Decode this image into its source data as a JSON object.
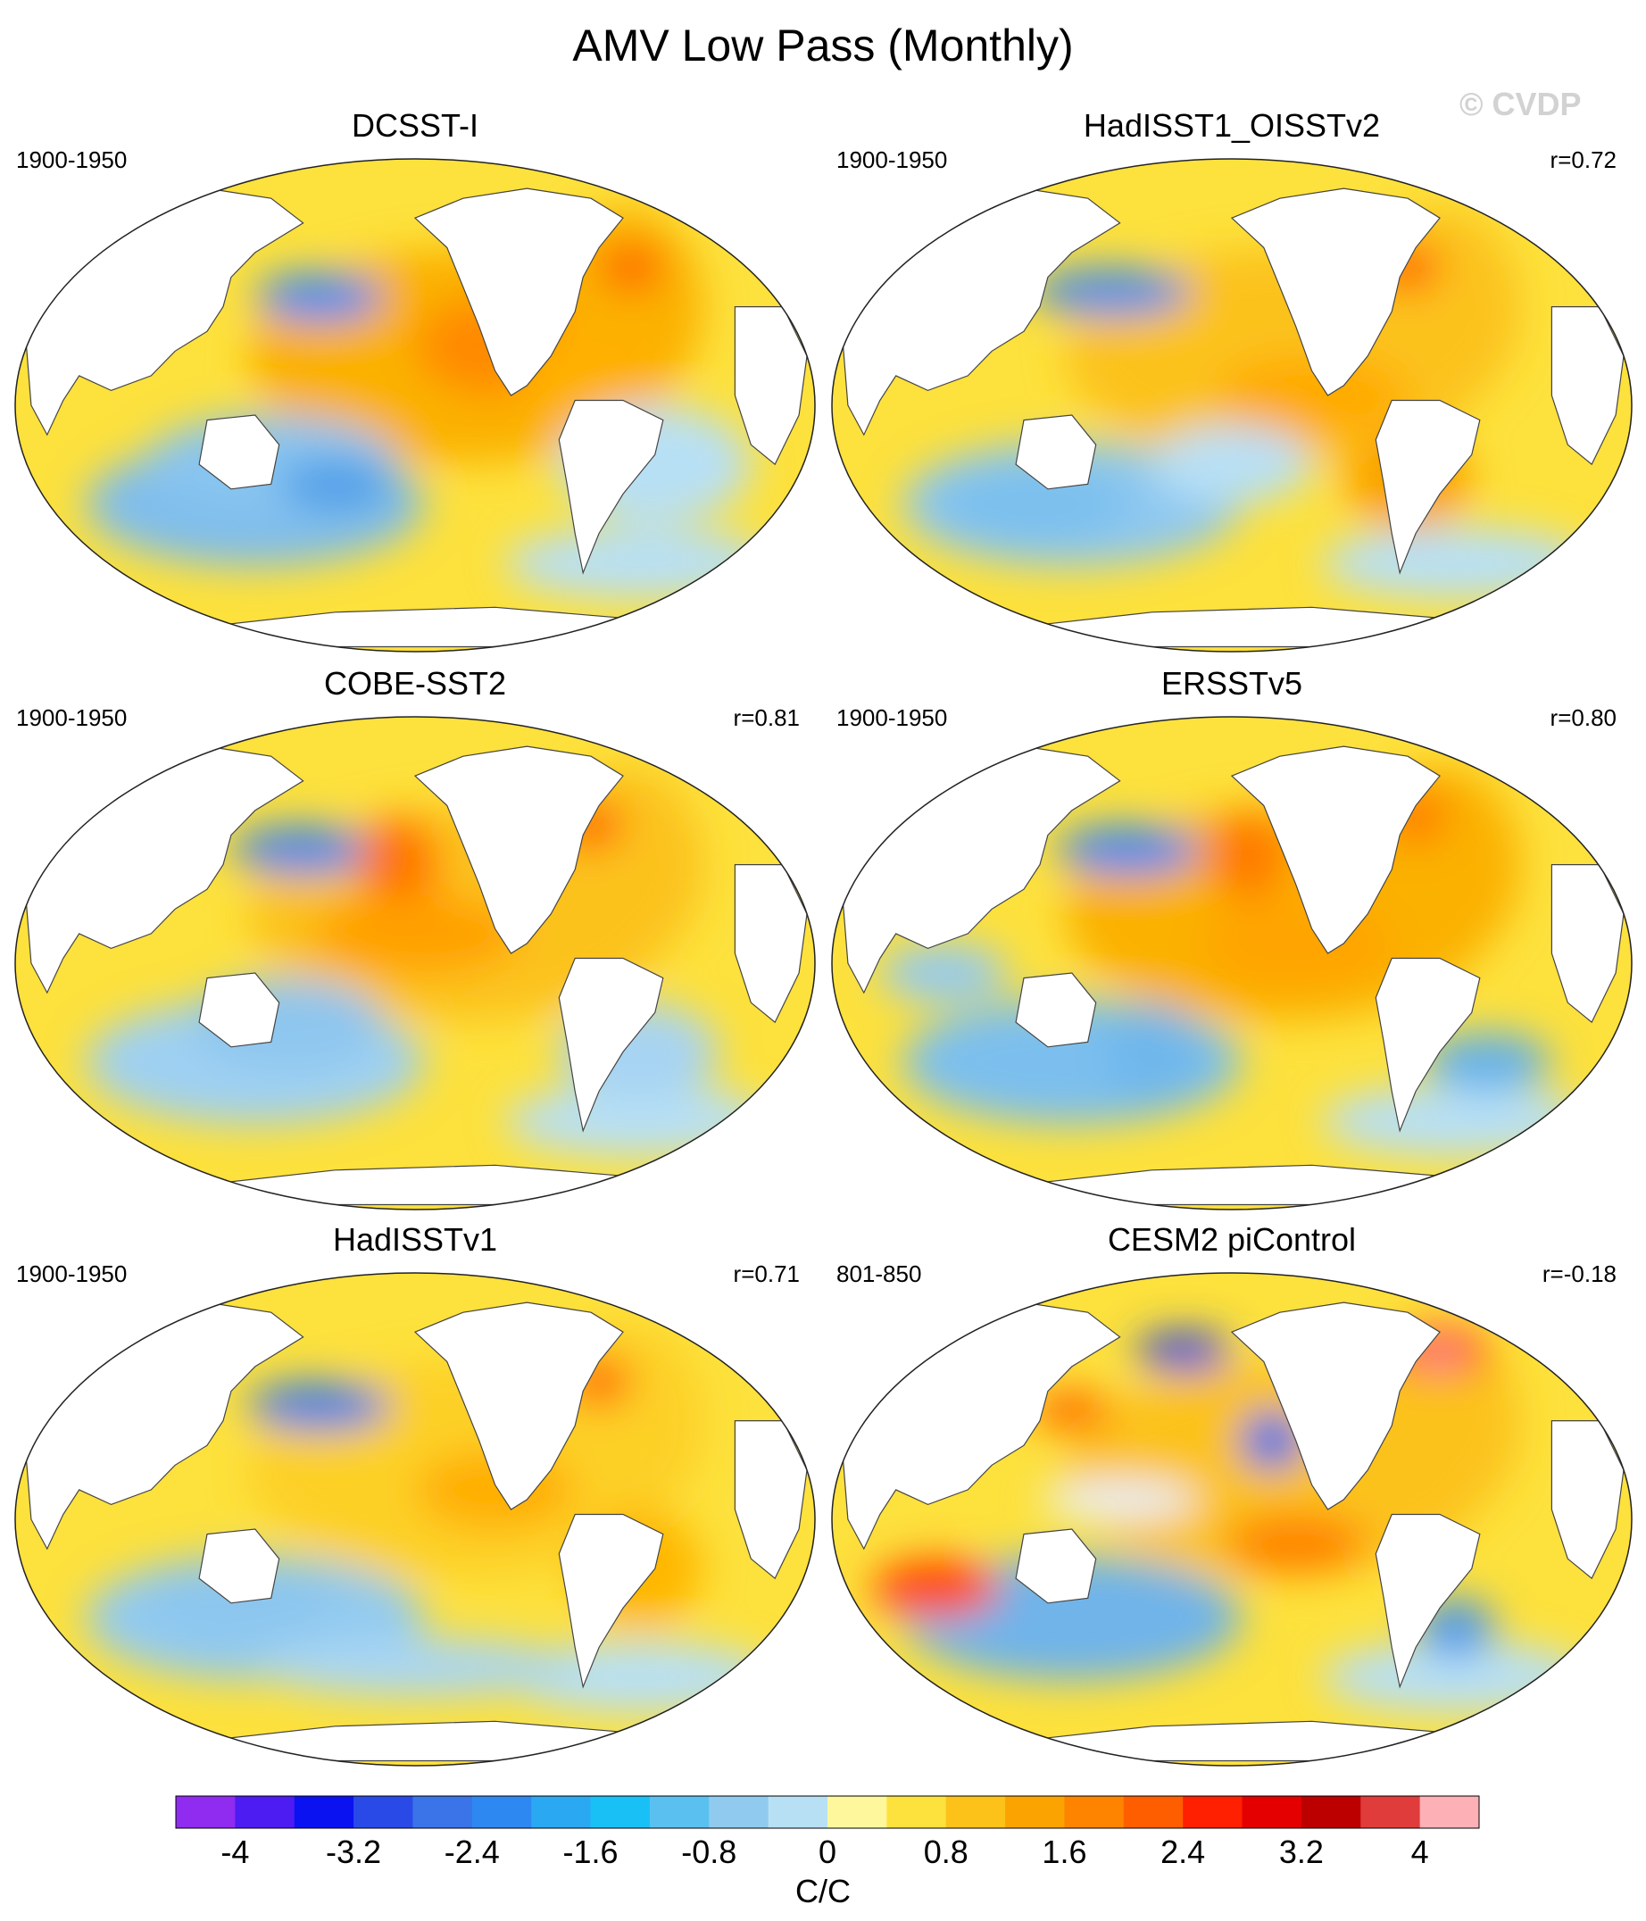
{
  "title": "AMV Low Pass (Monthly)",
  "watermark": "© CVDP",
  "panels": [
    {
      "title": "DCSST-I",
      "period": "1900-1950",
      "corr": "",
      "palette": "warm",
      "warm_center": "#fbb100",
      "cool_center": "#7fbdec",
      "spots": [
        [
          "#ff8a00",
          0.6,
          0.38,
          0.1,
          0.1
        ],
        [
          "#ffb000",
          0.72,
          0.45,
          0.09,
          0.12
        ],
        [
          "#3c8cf0",
          0.38,
          0.28,
          0.08,
          0.05
        ],
        [
          "#ff6a00",
          0.77,
          0.22,
          0.04,
          0.05
        ],
        [
          "#88c4f0",
          0.32,
          0.62,
          0.16,
          0.1
        ],
        [
          "#4e9ee8",
          0.4,
          0.66,
          0.07,
          0.05
        ],
        [
          "#b8e0f5",
          0.8,
          0.62,
          0.12,
          0.12
        ]
      ]
    },
    {
      "title": "HadISST1_OISSTv2",
      "period": "1900-1950",
      "corr": "r=0.72",
      "palette": "warm",
      "warm_center": "#fcc21a",
      "cool_center": "#8ec8f0",
      "spots": [
        [
          "#4a8ee8",
          0.35,
          0.27,
          0.1,
          0.05
        ],
        [
          "#ff6800",
          0.72,
          0.22,
          0.04,
          0.05
        ],
        [
          "#ffaa00",
          0.6,
          0.48,
          0.12,
          0.08
        ],
        [
          "#7cc0ee",
          0.25,
          0.7,
          0.12,
          0.08
        ],
        [
          "#fba300",
          0.72,
          0.65,
          0.08,
          0.1
        ],
        [
          "#b8e0f5",
          0.5,
          0.62,
          0.1,
          0.08
        ]
      ]
    },
    {
      "title": "COBE-SST2",
      "period": "1900-1950",
      "corr": "r=0.81",
      "palette": "warm",
      "warm_center": "#fcc21a",
      "cool_center": "#9ed0f2",
      "spots": [
        [
          "#3f86ea",
          0.36,
          0.27,
          0.09,
          0.05
        ],
        [
          "#ff7400",
          0.48,
          0.3,
          0.05,
          0.1
        ],
        [
          "#ffa000",
          0.5,
          0.44,
          0.13,
          0.08
        ],
        [
          "#ff6800",
          0.72,
          0.22,
          0.04,
          0.05
        ],
        [
          "#8dc6ef",
          0.34,
          0.62,
          0.12,
          0.09
        ],
        [
          "#a7d4f3",
          0.78,
          0.68,
          0.1,
          0.1
        ]
      ]
    },
    {
      "title": "ERSSTv5",
      "period": "1900-1950",
      "corr": "r=0.80",
      "palette": "warm",
      "warm_center": "#fbb100",
      "cool_center": "#7cbfee",
      "spots": [
        [
          "#3a88f0",
          0.37,
          0.27,
          0.09,
          0.05
        ],
        [
          "#ff7a00",
          0.52,
          0.28,
          0.05,
          0.09
        ],
        [
          "#ffa400",
          0.58,
          0.46,
          0.12,
          0.09
        ],
        [
          "#ff8000",
          0.73,
          0.2,
          0.04,
          0.06
        ],
        [
          "#6fb7ec",
          0.4,
          0.68,
          0.06,
          0.1
        ],
        [
          "#63b1ea",
          0.82,
          0.7,
          0.08,
          0.06
        ],
        [
          "#94caf0",
          0.14,
          0.52,
          0.08,
          0.06
        ]
      ]
    },
    {
      "title": "HadISSTv1",
      "period": "1900-1950",
      "corr": "r=0.71",
      "palette": "warm",
      "warm_center": "#fdd028",
      "cool_center": "#92caf0",
      "spots": [
        [
          "#3b7ee6",
          0.38,
          0.27,
          0.09,
          0.05
        ],
        [
          "#ff6a00",
          0.73,
          0.22,
          0.04,
          0.05
        ],
        [
          "#ffae00",
          0.6,
          0.44,
          0.1,
          0.08
        ],
        [
          "#8cc6ef",
          0.28,
          0.66,
          0.12,
          0.08
        ],
        [
          "#ffb700",
          0.78,
          0.6,
          0.08,
          0.12
        ],
        [
          "#a9d6f3",
          0.5,
          0.8,
          0.2,
          0.06
        ]
      ]
    },
    {
      "title": "CESM2 piControl",
      "period": "801-850",
      "corr": "r=-0.18",
      "palette": "mixed",
      "warm_center": "#fcc21a",
      "cool_center": "#6fb4ea",
      "spots": [
        [
          "#2a46e0",
          0.44,
          0.16,
          0.06,
          0.04
        ],
        [
          "#2e6ee8",
          0.55,
          0.34,
          0.04,
          0.06
        ],
        [
          "#ff2a00",
          0.76,
          0.16,
          0.06,
          0.05
        ],
        [
          "#ffb1b6",
          0.76,
          0.17,
          0.03,
          0.02
        ],
        [
          "#ff4a00",
          0.13,
          0.64,
          0.08,
          0.06
        ],
        [
          "#ff8200",
          0.58,
          0.55,
          0.09,
          0.06
        ],
        [
          "#e8f2f8",
          0.36,
          0.46,
          0.1,
          0.04
        ],
        [
          "#4f9ae8",
          0.78,
          0.72,
          0.05,
          0.06
        ],
        [
          "#ff6a00",
          0.3,
          0.28,
          0.05,
          0.04
        ]
      ]
    }
  ],
  "colorbar": {
    "colors": [
      "#8f2cf0",
      "#4d1cf2",
      "#0a12f2",
      "#2a4ae8",
      "#3a74e8",
      "#2e88f2",
      "#2aa8f2",
      "#18c0f6",
      "#5ac0f0",
      "#90cbef",
      "#b8e0f5",
      "#fef79c",
      "#fde13c",
      "#fcc21a",
      "#fba300",
      "#fe8400",
      "#fe5e00",
      "#fe2000",
      "#e40000",
      "#bc0000",
      "#e03c3c",
      "#fdb0b6"
    ],
    "labels": [
      "-4",
      "-3.2",
      "-2.4",
      "-1.6",
      "-0.8",
      "0",
      "0.8",
      "1.6",
      "2.4",
      "3.2",
      "4"
    ],
    "unit": "C/C"
  }
}
